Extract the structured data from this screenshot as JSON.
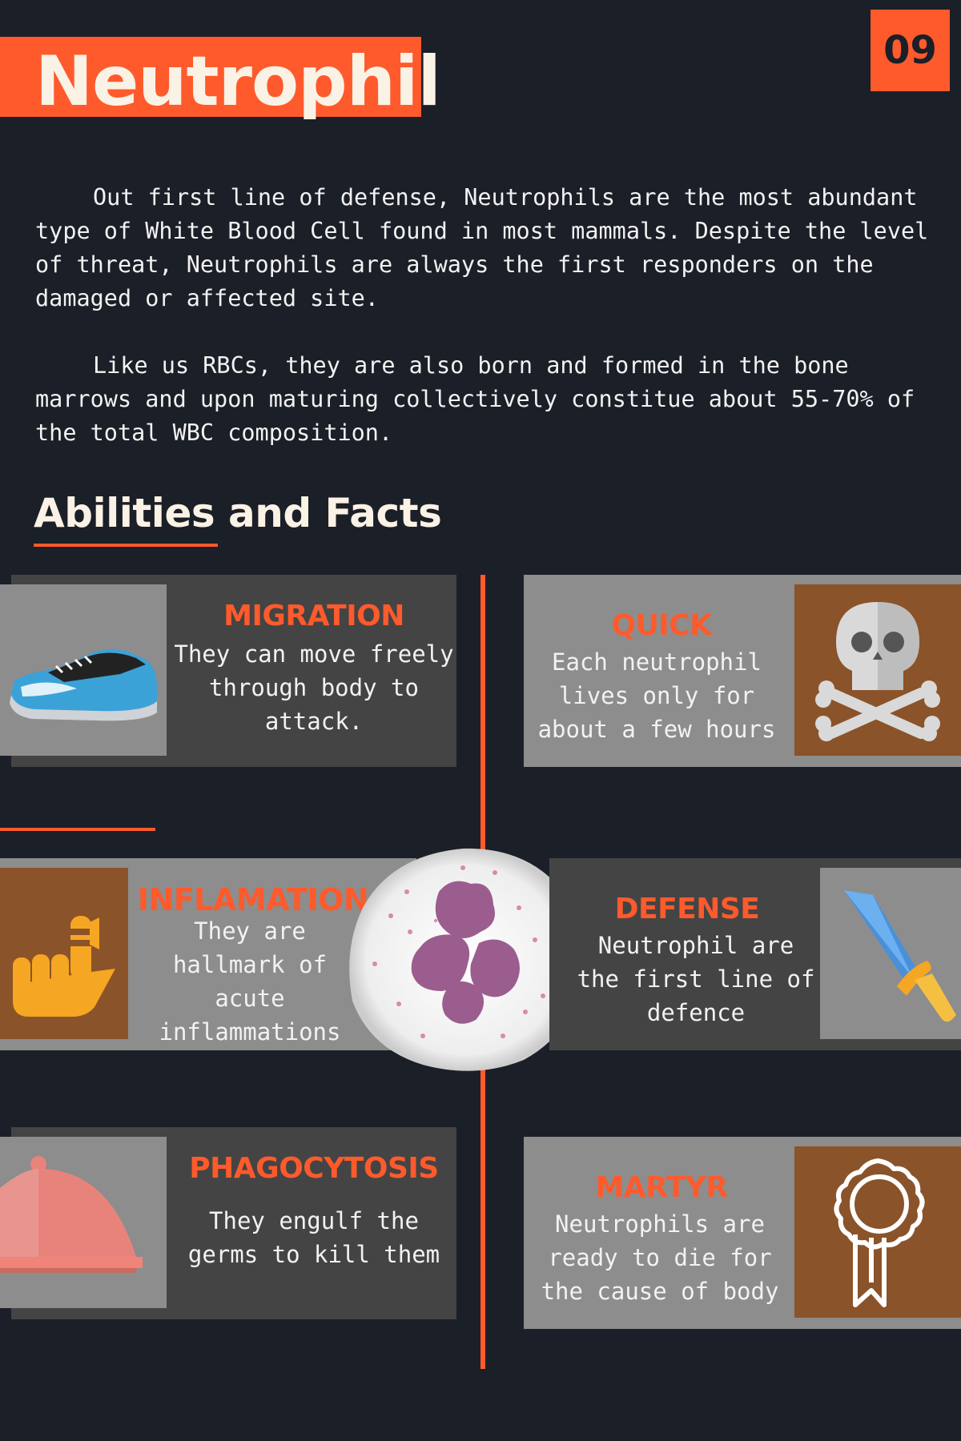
{
  "header": {
    "title": "Neutrophil",
    "page_number": "09"
  },
  "intro": {
    "paragraphs": [
      "Out first line of defense, Neutrophils are the most abundant type of White Blood Cell found in most mammals. Despite the level of threat, Neutrophils are always the first responders on the damaged or affected site.",
      "Like us RBCs, they are also born and formed in the bone marrows and upon maturing collectively constitue about 55-70% of the total WBC composition."
    ]
  },
  "section": {
    "heading": "Abilities and Facts"
  },
  "cards": [
    {
      "title": "MIGRATION",
      "text": "They can move freely through body to attack.",
      "icon": "sneaker-icon"
    },
    {
      "title": "QUICK",
      "text": "Each neutrophil lives only for about a few hours",
      "icon": "skull-crossbones-icon"
    },
    {
      "title": "INFLAMATION",
      "text": "They are hallmark of acute inflammations",
      "icon": "bandaged-finger-icon"
    },
    {
      "title": "DEFENSE",
      "text": "Neutrophil are the first line of defence",
      "icon": "sword-icon"
    },
    {
      "title": "PHAGOCYTOSIS",
      "text": "They engulf the germs to kill them",
      "icon": "food-cloche-icon"
    },
    {
      "title": "MARTYR",
      "text": "Neutrophils are ready to die for the cause of body",
      "icon": "award-ribbon-icon"
    }
  ],
  "colors": {
    "background": "#1b1f27",
    "accent": "#ff5a2c",
    "card_dark": "#444444",
    "card_light": "#8d8d8d",
    "icon_brown": "#8b5329"
  }
}
